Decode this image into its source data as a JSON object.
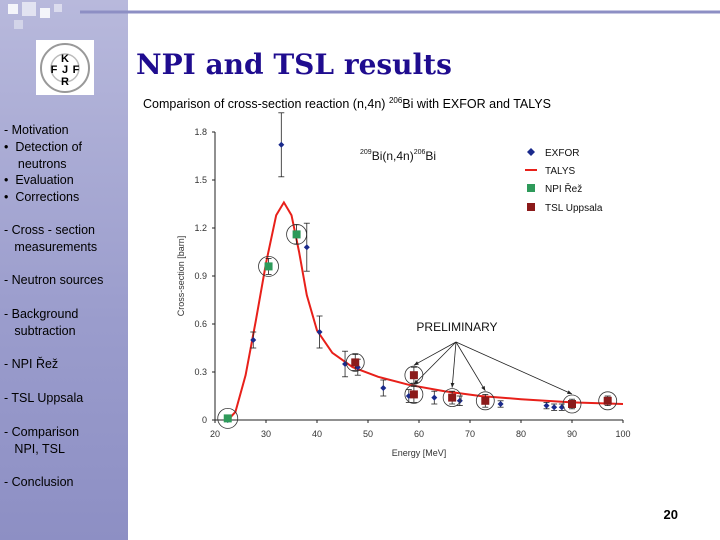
{
  "slide": {
    "title": "NPI and TSL results",
    "subtitle_prefix": "Comparison of cross-section reaction (n,4n) ",
    "subtitle_sup": "206",
    "subtitle_suffix": "Bi with EXFOR and TALYS",
    "page_number": "20",
    "logo_letters": [
      "K",
      "F",
      "J",
      "F",
      "R"
    ]
  },
  "sidebar": {
    "items": [
      {
        "label": "- Motivation"
      },
      {
        "label": "•  Detection of\n    neutrons"
      },
      {
        "label": "•  Evaluation"
      },
      {
        "label": "•  Corrections"
      },
      {
        "label": "- Cross - section\n   measurements"
      },
      {
        "label": "- Neutron sources"
      },
      {
        "label": "- Background\n   subtraction"
      },
      {
        "label": "- NPI Řež"
      },
      {
        "label": "- TSL Uppsala"
      },
      {
        "label": "- Comparison\n   NPI, TSL"
      },
      {
        "label": "- Conclusion"
      }
    ]
  },
  "colors": {
    "title": "#1f0c8f",
    "exfor": "#1a2a8c",
    "talys": "#e8201a",
    "npi": "#2e9a5a",
    "tsl": "#8b1a1a"
  },
  "chart_data": {
    "type": "scatter",
    "reaction_label": {
      "sup1": "209",
      "base1": "Bi(n,4n)",
      "sup2": "206",
      "base2": "Bi"
    },
    "xlabel": "Energy [MeV]",
    "ylabel": "Cross-section [barn]",
    "xlim": [
      20,
      100
    ],
    "ylim": [
      0,
      1.8
    ],
    "xticks": [
      "20",
      "30",
      "40",
      "50",
      "60",
      "70",
      "80",
      "90",
      "100"
    ],
    "yticks": [
      "0",
      "0.3",
      "0.6",
      "0.9",
      "1.2",
      "1.5",
      "1.8"
    ],
    "annotation": "PRELIMINARY",
    "legend": [
      "EXFOR",
      "TALYS",
      "NPI Řež",
      "TSL Uppsala"
    ],
    "series": [
      {
        "name": "EXFOR",
        "points": [
          {
            "x": 22.5,
            "y": 0.0,
            "err": 0.01
          },
          {
            "x": 27.5,
            "y": 0.5,
            "err": 0.05
          },
          {
            "x": 33.0,
            "y": 1.72,
            "err": 0.2
          },
          {
            "x": 38.0,
            "y": 1.08,
            "err": 0.15
          },
          {
            "x": 40.5,
            "y": 0.55,
            "err": 0.1
          },
          {
            "x": 45.5,
            "y": 0.35,
            "err": 0.08
          },
          {
            "x": 48.0,
            "y": 0.33,
            "err": 0.05
          },
          {
            "x": 53.0,
            "y": 0.2,
            "err": 0.05
          },
          {
            "x": 58.0,
            "y": 0.15,
            "err": 0.04
          },
          {
            "x": 63.0,
            "y": 0.14,
            "err": 0.04
          },
          {
            "x": 68.0,
            "y": 0.12,
            "err": 0.03
          },
          {
            "x": 76.0,
            "y": 0.1,
            "err": 0.02
          },
          {
            "x": 85.0,
            "y": 0.09,
            "err": 0.02
          },
          {
            "x": 86.5,
            "y": 0.08,
            "err": 0.02
          },
          {
            "x": 88.0,
            "y": 0.08,
            "err": 0.02
          }
        ]
      },
      {
        "name": "TALYS",
        "points": [
          {
            "x": 22.5,
            "y": 0.0
          },
          {
            "x": 24,
            "y": 0.05
          },
          {
            "x": 26,
            "y": 0.28
          },
          {
            "x": 28,
            "y": 0.62
          },
          {
            "x": 30,
            "y": 0.98
          },
          {
            "x": 32,
            "y": 1.28
          },
          {
            "x": 33.5,
            "y": 1.36
          },
          {
            "x": 35,
            "y": 1.28
          },
          {
            "x": 36.5,
            "y": 1.05
          },
          {
            "x": 38,
            "y": 0.78
          },
          {
            "x": 40,
            "y": 0.56
          },
          {
            "x": 43,
            "y": 0.42
          },
          {
            "x": 47,
            "y": 0.33
          },
          {
            "x": 52,
            "y": 0.27
          },
          {
            "x": 58,
            "y": 0.22
          },
          {
            "x": 65,
            "y": 0.18
          },
          {
            "x": 72,
            "y": 0.15
          },
          {
            "x": 80,
            "y": 0.13
          },
          {
            "x": 90,
            "y": 0.11
          },
          {
            "x": 100,
            "y": 0.1
          }
        ]
      },
      {
        "name": "NPI Řež",
        "points": [
          {
            "x": 22.5,
            "y": 0.01,
            "err": 0.01
          },
          {
            "x": 30.5,
            "y": 0.96,
            "err": 0.05
          },
          {
            "x": 36.0,
            "y": 1.16,
            "err": 0.06
          }
        ]
      },
      {
        "name": "TSL Uppsala",
        "points": [
          {
            "x": 47.5,
            "y": 0.36,
            "err": 0.05
          },
          {
            "x": 59.0,
            "y": 0.28,
            "err": 0.05
          },
          {
            "x": 59.0,
            "y": 0.16,
            "err": 0.05
          },
          {
            "x": 66.5,
            "y": 0.14,
            "err": 0.04
          },
          {
            "x": 73.0,
            "y": 0.12,
            "err": 0.04
          },
          {
            "x": 90.0,
            "y": 0.1,
            "err": 0.03
          },
          {
            "x": 97.0,
            "y": 0.12,
            "err": 0.03
          }
        ]
      }
    ]
  }
}
